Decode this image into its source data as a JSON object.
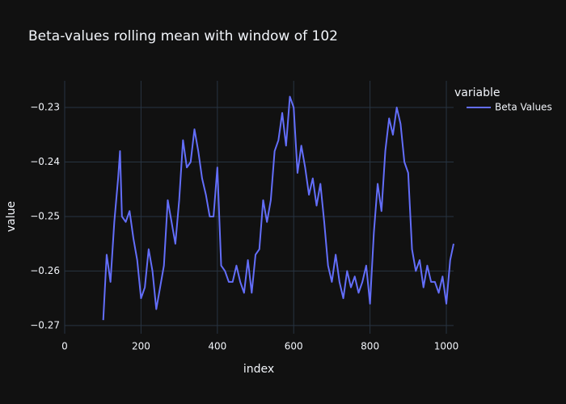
{
  "chart_data": {
    "type": "line",
    "title": "Beta-values rolling mean with window of 102",
    "x_label": "index",
    "y_label": "value",
    "legend_title": "variable",
    "legend_position": "right",
    "grid": true,
    "xlim": [
      0,
      1019
    ],
    "ylim": [
      -0.2715,
      -0.2251
    ],
    "xticks": [
      0,
      200,
      400,
      600,
      800,
      1000
    ],
    "yticks": [
      {
        "value": -0.27,
        "label": "−0.27"
      },
      {
        "value": -0.26,
        "label": "−0.26"
      },
      {
        "value": -0.25,
        "label": "−0.25"
      },
      {
        "value": -0.24,
        "label": "−0.24"
      },
      {
        "value": -0.23,
        "label": "−0.23"
      }
    ],
    "x": [
      101,
      110,
      120,
      130,
      140,
      145,
      150,
      160,
      170,
      180,
      190,
      200,
      210,
      220,
      230,
      240,
      250,
      260,
      270,
      280,
      290,
      300,
      310,
      320,
      330,
      340,
      350,
      360,
      370,
      380,
      390,
      400,
      410,
      420,
      430,
      440,
      450,
      460,
      470,
      480,
      490,
      500,
      510,
      520,
      530,
      540,
      550,
      560,
      570,
      580,
      590,
      600,
      610,
      620,
      630,
      640,
      650,
      660,
      670,
      680,
      690,
      700,
      710,
      720,
      730,
      740,
      750,
      760,
      770,
      780,
      790,
      800,
      810,
      820,
      830,
      840,
      850,
      860,
      870,
      880,
      890,
      900,
      910,
      920,
      930,
      940,
      950,
      960,
      970,
      980,
      990,
      1000,
      1010,
      1019
    ],
    "series": [
      {
        "name": "Beta Values",
        "color": "#636efa",
        "values": [
          -0.269,
          -0.257,
          -0.262,
          -0.251,
          -0.243,
          -0.238,
          -0.25,
          -0.251,
          -0.249,
          -0.254,
          -0.258,
          -0.265,
          -0.263,
          -0.256,
          -0.26,
          -0.267,
          -0.263,
          -0.259,
          -0.247,
          -0.251,
          -0.255,
          -0.247,
          -0.236,
          -0.241,
          -0.24,
          -0.234,
          -0.238,
          -0.243,
          -0.246,
          -0.25,
          -0.25,
          -0.241,
          -0.259,
          -0.26,
          -0.262,
          -0.262,
          -0.259,
          -0.262,
          -0.264,
          -0.258,
          -0.264,
          -0.257,
          -0.256,
          -0.247,
          -0.251,
          -0.247,
          -0.238,
          -0.236,
          -0.231,
          -0.237,
          -0.228,
          -0.23,
          -0.242,
          -0.237,
          -0.241,
          -0.246,
          -0.243,
          -0.248,
          -0.244,
          -0.251,
          -0.259,
          -0.262,
          -0.257,
          -0.262,
          -0.265,
          -0.26,
          -0.263,
          -0.261,
          -0.264,
          -0.262,
          -0.259,
          -0.266,
          -0.253,
          -0.244,
          -0.249,
          -0.238,
          -0.232,
          -0.235,
          -0.23,
          -0.233,
          -0.24,
          -0.242,
          -0.256,
          -0.26,
          -0.258,
          -0.263,
          -0.259,
          -0.262,
          -0.262,
          -0.264,
          -0.261,
          -0.266,
          -0.258,
          -0.255
        ]
      }
    ]
  }
}
